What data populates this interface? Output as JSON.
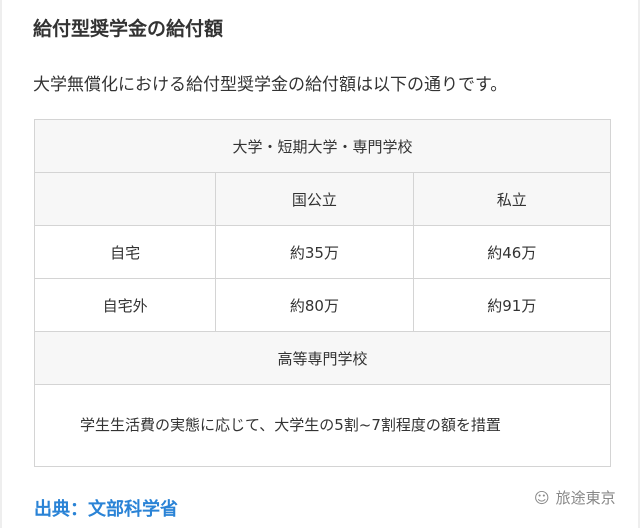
{
  "title": "給付型奨学金の給付額",
  "intro": "大学無償化における給付型奨学金の給付額は以下の通りです。",
  "table": {
    "section1": "大学・短期大学・専門学校",
    "headers": [
      "",
      "国公立",
      "私立"
    ],
    "rows": [
      [
        "自宅",
        "約35万",
        "約46万"
      ],
      [
        "自宅外",
        "約80万",
        "約91万"
      ]
    ],
    "section2": "高等専門学校",
    "note": "学生生活費の実態に応じて、大学生の5割~7割程度の額を措置"
  },
  "source": "出典：文部科学省",
  "watermark": "旅途東京"
}
